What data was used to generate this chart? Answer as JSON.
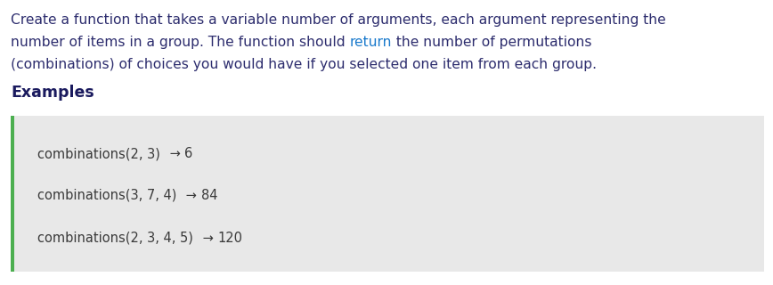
{
  "bg_color": "#ffffff",
  "description_lines": [
    "Create a function that takes a variable number of arguments, each argument representing the",
    "number of items in a group. The function should ",
    "return",
    " the number of permutations",
    "(combinations) of choices you would have if you selected one item from each group."
  ],
  "desc_color": "#2d2d6e",
  "return_color": "#1a7acc",
  "examples_label": "Examples",
  "examples_color": "#1a1a5e",
  "code_bg_color": "#e8e8e8",
  "code_border_color": "#4caf50",
  "code_lines": [
    "combinations(2, 3)",
    "combinations(3, 7, 4)",
    "combinations(2, 3, 4, 5)"
  ],
  "code_color": "#3a3a3a",
  "arrow": "→",
  "arrow_color": "#3a3a3a",
  "results": [
    "6",
    "84",
    "120"
  ],
  "result_color": "#3a3a3a",
  "font_size_desc": 11.2,
  "font_size_examples": 12.5,
  "font_size_code": 10.5
}
